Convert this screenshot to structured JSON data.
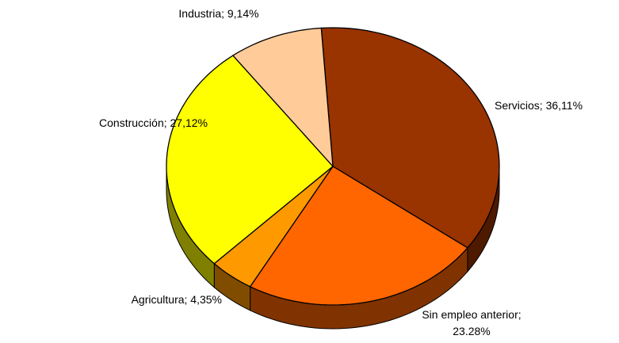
{
  "chart_data": {
    "type": "pie3d",
    "values": [
      36.11,
      23.28,
      4.35,
      27.12,
      9.14
    ],
    "value_labels": [
      [
        "Servicios; 36,11%"
      ],
      [
        "Sin empleo anterior;",
        "23.28%"
      ],
      [
        "Agricultura; 4,35%"
      ],
      [
        "Construcción; 27,12%"
      ],
      [
        "Industria; 9,14%"
      ]
    ],
    "colors": [
      "#993300",
      "#ff6600",
      "#ff9900",
      "#ffff00",
      "#ffcc99"
    ],
    "side_colors": [
      "#4d1a00",
      "#803300",
      "#804d00",
      "#808000",
      "#806650"
    ]
  }
}
